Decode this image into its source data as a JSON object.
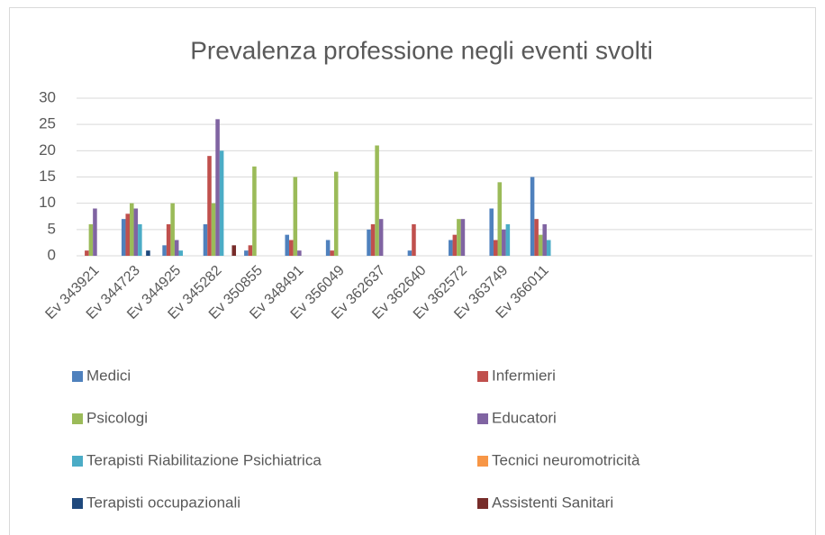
{
  "chart_data": {
    "type": "bar",
    "title": "Prevalenza professione negli eventi svolti",
    "categories": [
      "Ev 343921",
      "Ev 344723",
      "Ev 344925",
      "Ev 345282",
      "Ev 350855",
      "Ev 348491",
      "Ev 356049",
      "Ev 362637",
      "Ev 362640",
      "Ev 362572",
      "Ev 363749",
      "Ev 366011",
      null,
      null,
      null,
      null,
      null,
      null
    ],
    "series": [
      {
        "name": "Medici",
        "color": "#4f81bd",
        "values": [
          0,
          7,
          2,
          6,
          1,
          4,
          3,
          5,
          1,
          3,
          9,
          15,
          null,
          null,
          null,
          null,
          null,
          null
        ]
      },
      {
        "name": "Infermieri",
        "color": "#c0504d",
        "values": [
          1,
          8,
          6,
          19,
          2,
          3,
          1,
          6,
          6,
          4,
          3,
          7,
          null,
          null,
          null,
          null,
          null,
          null
        ]
      },
      {
        "name": "Psicologi",
        "color": "#9bbb59",
        "values": [
          6,
          10,
          10,
          10,
          17,
          15,
          16,
          21,
          0,
          7,
          14,
          4,
          null,
          null,
          null,
          null,
          null,
          null
        ]
      },
      {
        "name": "Educatori",
        "color": "#8064a2",
        "values": [
          9,
          9,
          3,
          26,
          0,
          1,
          0,
          7,
          0,
          7,
          5,
          6,
          null,
          null,
          null,
          null,
          null,
          null
        ]
      },
      {
        "name": "Terapisti Riabilitazione Psichiatrica",
        "color": "#4bacc6",
        "values": [
          0,
          6,
          1,
          20,
          0,
          0,
          0,
          0,
          0,
          0,
          6,
          3,
          null,
          null,
          null,
          null,
          null,
          null
        ]
      },
      {
        "name": "Tecnici neuromotricità",
        "color": "#f79646",
        "values": [
          0,
          0,
          0,
          0,
          0,
          0,
          0,
          0,
          0,
          0,
          0,
          0,
          null,
          null,
          null,
          null,
          null,
          null
        ]
      },
      {
        "name": "Terapisti occupazionali",
        "color": "#1f497d",
        "values": [
          0,
          1,
          0,
          0,
          0,
          0,
          0,
          0,
          0,
          0,
          0,
          0,
          null,
          null,
          null,
          null,
          null,
          null
        ]
      },
      {
        "name": "Assistenti Sanitari",
        "color": "#772c2a",
        "values": [
          0,
          0,
          0,
          2,
          0,
          0,
          0,
          0,
          0,
          0,
          0,
          0,
          null,
          null,
          null,
          null,
          null,
          null
        ]
      }
    ],
    "ylim": [
      0,
      30
    ],
    "yticks": [
      0,
      5,
      10,
      15,
      20,
      25,
      30
    ],
    "grid": true,
    "legend": "bottom"
  }
}
